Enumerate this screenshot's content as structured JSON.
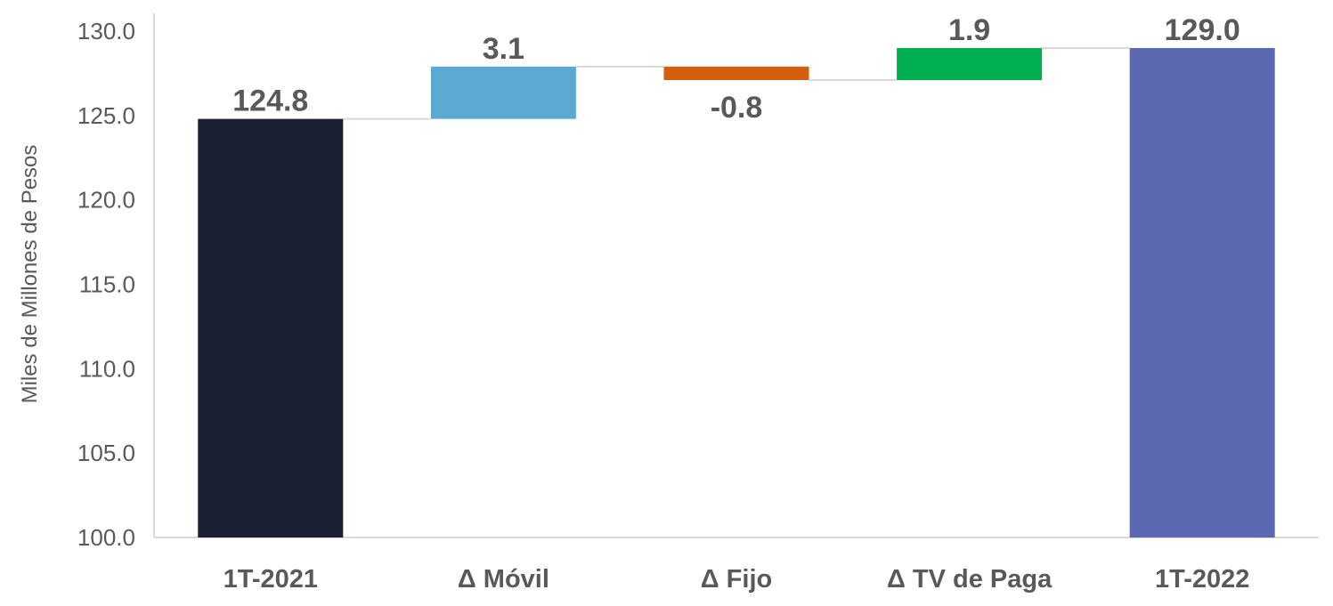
{
  "chart_data": {
    "type": "bar",
    "subtype": "waterfall",
    "title": "",
    "xlabel": "",
    "ylabel": "Miles de Millones de Pesos",
    "ylim": [
      100,
      130
    ],
    "yticks": [
      "100.0",
      "105.0",
      "110.0",
      "115.0",
      "120.0",
      "125.0",
      "130.0"
    ],
    "grid": false,
    "legend": "none",
    "categories": [
      "1T-2021",
      "Δ Móvil",
      "Δ Fijo",
      "Δ TV de Paga",
      "1T-2022"
    ],
    "values": [
      124.8,
      3.1,
      -0.8,
      1.9,
      129.0
    ],
    "kinds": [
      "total",
      "delta",
      "delta",
      "delta",
      "total"
    ],
    "data_labels": [
      "124.8",
      "3.1",
      "-0.8",
      "1.9",
      "129.0"
    ],
    "colors": [
      "#1b1f33",
      "#5aa9d3",
      "#d35f0a",
      "#00b050",
      "#5b67b0"
    ],
    "connector_color": "#d9d9d9",
    "axis_color": "#d9d9d9"
  }
}
